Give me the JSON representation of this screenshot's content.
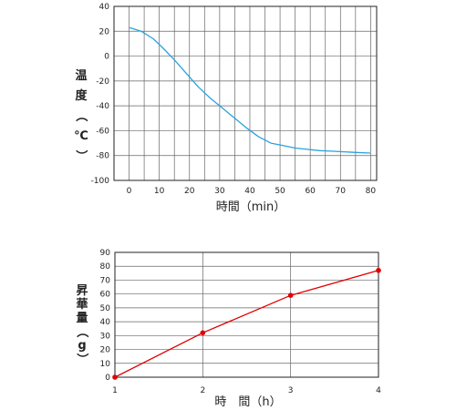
{
  "chart_data": [
    {
      "type": "line",
      "xlabel": "時間（min）",
      "ylabel": "温度（℃）",
      "xlim": [
        -5,
        82
      ],
      "ylim": [
        -100,
        40
      ],
      "x_ticks": [
        0,
        10,
        20,
        30,
        40,
        50,
        60,
        70,
        80
      ],
      "y_ticks": [
        40,
        20,
        0,
        -20,
        -40,
        -60,
        -80,
        -100
      ],
      "grid": true,
      "series": [
        {
          "color": "#29a3dd",
          "marker": "none",
          "x": [
            0,
            4,
            8,
            11,
            15,
            19,
            23,
            27,
            31,
            35,
            39,
            43,
            47,
            51,
            55,
            59,
            63,
            67,
            71,
            75,
            80
          ],
          "y": [
            23,
            20,
            14,
            7,
            -3,
            -14,
            -25,
            -34,
            -42,
            -50,
            -58,
            -65,
            -70,
            -72,
            -74,
            -75,
            -76,
            -76.5,
            -77,
            -77.5,
            -78
          ]
        }
      ]
    },
    {
      "type": "line",
      "xlabel": "時　間（h）",
      "ylabel": "昇華量（g）",
      "xlim": [
        1,
        4
      ],
      "ylim": [
        0,
        90
      ],
      "x_ticks": [
        1,
        2,
        3,
        4
      ],
      "y_ticks": [
        90,
        80,
        70,
        60,
        50,
        40,
        30,
        20,
        10,
        0
      ],
      "grid": true,
      "series": [
        {
          "color": "#e00000",
          "marker": "circle",
          "x": [
            1,
            2,
            3,
            4
          ],
          "y": [
            0,
            32,
            59,
            77
          ]
        }
      ]
    }
  ]
}
